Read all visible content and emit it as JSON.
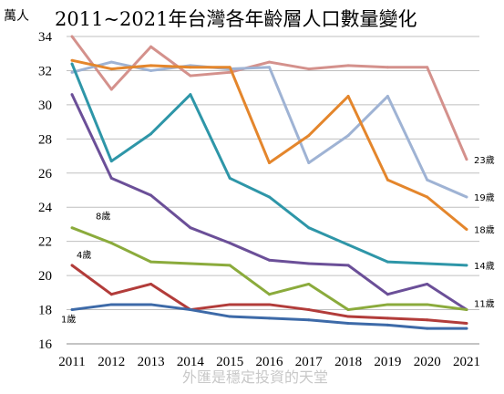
{
  "chart_data": {
    "type": "line",
    "title": "2011~2021年台灣各年齡層人口數量變化",
    "unit_label": "萬人",
    "watermark": "外匯是穩定投資的天堂",
    "x": [
      "2011",
      "2012",
      "2013",
      "2014",
      "2015",
      "2016",
      "2017",
      "2018",
      "2019",
      "2020",
      "2021"
    ],
    "ylim": [
      16,
      34
    ],
    "yticks": [
      "16",
      "18",
      "20",
      "22",
      "24",
      "26",
      "28",
      "30",
      "32",
      "34"
    ],
    "grid": true,
    "series": [
      {
        "name": "23歲",
        "color": "#d4918c",
        "values": [
          34.0,
          30.9,
          33.4,
          31.7,
          31.9,
          32.5,
          32.1,
          32.3,
          32.2,
          32.2,
          26.8
        ]
      },
      {
        "name": "19歲",
        "color": "#9fb3d4",
        "values": [
          31.9,
          32.5,
          32.0,
          32.3,
          32.1,
          32.2,
          26.6,
          28.2,
          30.5,
          25.6,
          24.6
        ]
      },
      {
        "name": "18歲",
        "color": "#e4862c",
        "values": [
          32.6,
          32.1,
          32.3,
          32.2,
          32.2,
          26.6,
          28.2,
          30.5,
          25.6,
          24.6,
          22.7
        ]
      },
      {
        "name": "14歲",
        "color": "#2e96a8",
        "values": [
          32.4,
          26.7,
          28.3,
          30.6,
          25.7,
          24.6,
          22.8,
          21.8,
          20.8,
          20.7,
          20.6
        ]
      },
      {
        "name": "11歲",
        "color": "#6b4f98",
        "values": [
          30.6,
          25.7,
          24.7,
          22.8,
          21.9,
          20.9,
          20.7,
          20.6,
          18.9,
          19.5,
          18.0
        ]
      },
      {
        "name": "8歲",
        "color": "#8bab3c",
        "values": [
          22.8,
          21.9,
          20.8,
          20.7,
          20.6,
          18.9,
          19.5,
          18.0,
          18.3,
          18.3,
          18.0
        ]
      },
      {
        "name": "4歲",
        "color": "#b23c3a",
        "values": [
          20.6,
          18.9,
          19.5,
          18.0,
          18.3,
          18.3,
          18.0,
          17.6,
          17.5,
          17.4,
          17.2
        ]
      },
      {
        "name": "1歲",
        "color": "#3d6aa8",
        "values": [
          18.0,
          18.3,
          18.3,
          18.0,
          17.6,
          17.5,
          17.4,
          17.2,
          17.1,
          16.9,
          16.9
        ]
      }
    ]
  }
}
